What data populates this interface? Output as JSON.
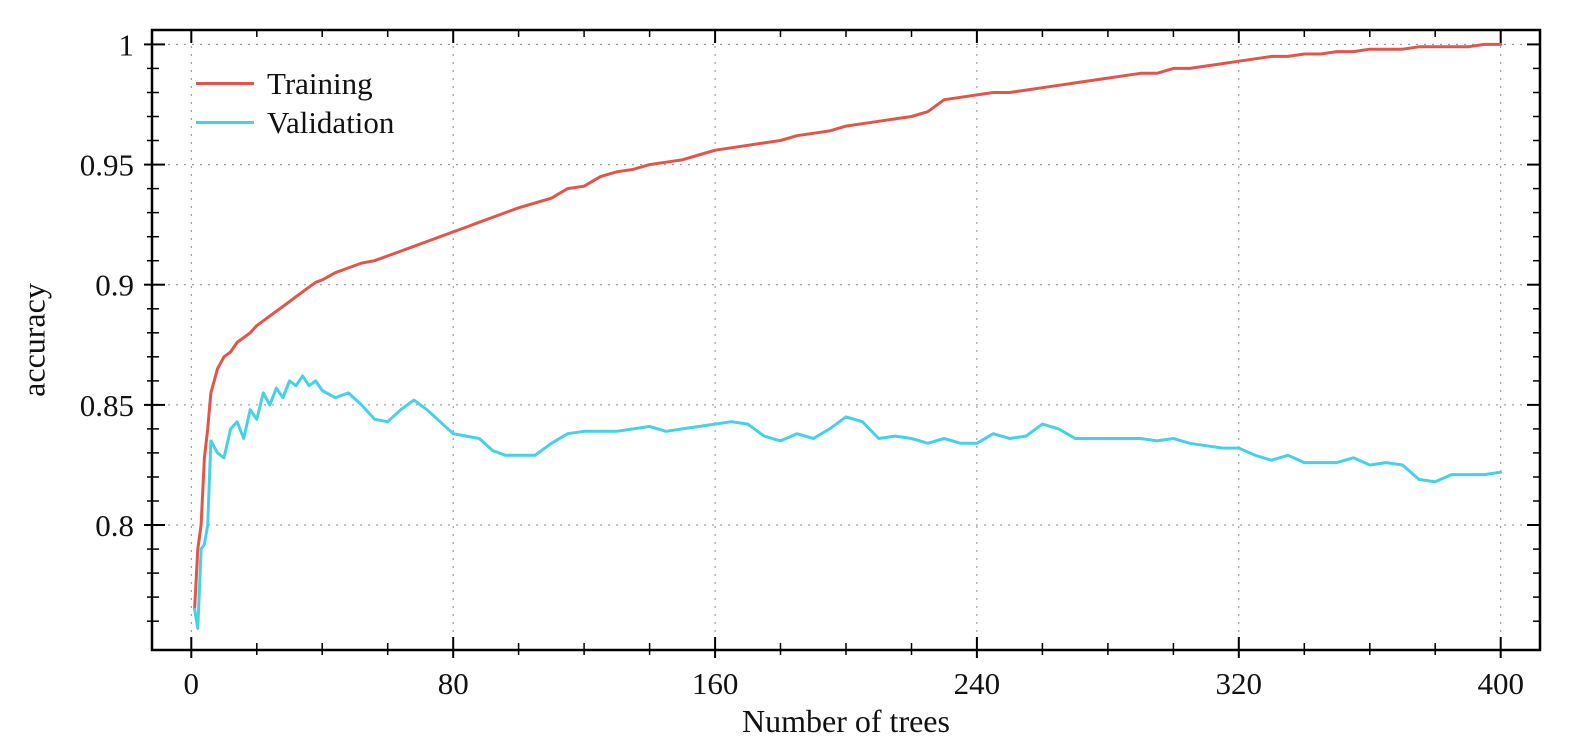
{
  "chart_data": {
    "type": "line",
    "title": "",
    "xlabel": "Number of trees",
    "ylabel": "accuracy",
    "xlim": [
      -12,
      412
    ],
    "ylim": [
      0.748,
      1.006
    ],
    "x_ticks": [
      0,
      80,
      160,
      240,
      320,
      400
    ],
    "y_ticks": [
      0.8,
      0.85,
      0.9,
      0.95,
      1
    ],
    "x_minor_step": 20,
    "y_minor_step": 0.01,
    "grid": true,
    "grid_style": "dotted",
    "legend_position": "top-left",
    "frame_color": "#000000",
    "grid_color": "#8a8a8a",
    "x": [
      1,
      2,
      3,
      4,
      5,
      6,
      8,
      10,
      12,
      14,
      16,
      18,
      20,
      22,
      24,
      26,
      28,
      30,
      32,
      34,
      36,
      38,
      40,
      44,
      48,
      52,
      56,
      60,
      64,
      68,
      72,
      76,
      80,
      84,
      88,
      92,
      96,
      100,
      105,
      110,
      115,
      120,
      125,
      130,
      135,
      140,
      145,
      150,
      155,
      160,
      165,
      170,
      175,
      180,
      185,
      190,
      195,
      200,
      205,
      210,
      215,
      220,
      225,
      230,
      235,
      240,
      245,
      250,
      255,
      260,
      265,
      270,
      275,
      280,
      285,
      290,
      295,
      300,
      305,
      310,
      315,
      320,
      325,
      330,
      335,
      340,
      345,
      350,
      355,
      360,
      365,
      370,
      375,
      380,
      385,
      390,
      395,
      400
    ],
    "series": [
      {
        "name": "Training",
        "color": "#e25549",
        "values": [
          0.765,
          0.79,
          0.8,
          0.828,
          0.84,
          0.855,
          0.865,
          0.87,
          0.872,
          0.876,
          0.878,
          0.88,
          0.883,
          0.885,
          0.887,
          0.889,
          0.891,
          0.893,
          0.895,
          0.897,
          0.899,
          0.901,
          0.902,
          0.905,
          0.907,
          0.909,
          0.91,
          0.912,
          0.914,
          0.916,
          0.918,
          0.92,
          0.922,
          0.924,
          0.926,
          0.928,
          0.93,
          0.932,
          0.934,
          0.936,
          0.94,
          0.941,
          0.945,
          0.947,
          0.948,
          0.95,
          0.951,
          0.952,
          0.954,
          0.956,
          0.957,
          0.958,
          0.959,
          0.96,
          0.962,
          0.963,
          0.964,
          0.966,
          0.967,
          0.968,
          0.969,
          0.97,
          0.972,
          0.977,
          0.978,
          0.979,
          0.98,
          0.98,
          0.981,
          0.982,
          0.983,
          0.984,
          0.985,
          0.986,
          0.987,
          0.988,
          0.988,
          0.99,
          0.99,
          0.991,
          0.992,
          0.993,
          0.994,
          0.995,
          0.995,
          0.996,
          0.996,
          0.997,
          0.997,
          0.998,
          0.998,
          0.998,
          0.999,
          0.999,
          0.999,
          0.999,
          1.0,
          1.0
        ]
      },
      {
        "name": "Validation",
        "color": "#45d1e8",
        "values": [
          0.765,
          0.757,
          0.79,
          0.792,
          0.8,
          0.835,
          0.83,
          0.828,
          0.84,
          0.843,
          0.836,
          0.848,
          0.844,
          0.855,
          0.85,
          0.857,
          0.853,
          0.86,
          0.858,
          0.862,
          0.858,
          0.86,
          0.856,
          0.853,
          0.855,
          0.85,
          0.844,
          0.843,
          0.848,
          0.852,
          0.848,
          0.843,
          0.838,
          0.837,
          0.836,
          0.831,
          0.829,
          0.829,
          0.829,
          0.834,
          0.838,
          0.839,
          0.839,
          0.839,
          0.84,
          0.841,
          0.839,
          0.84,
          0.841,
          0.842,
          0.843,
          0.842,
          0.837,
          0.835,
          0.838,
          0.836,
          0.84,
          0.845,
          0.843,
          0.836,
          0.837,
          0.836,
          0.834,
          0.836,
          0.834,
          0.834,
          0.838,
          0.836,
          0.837,
          0.842,
          0.84,
          0.836,
          0.836,
          0.836,
          0.836,
          0.836,
          0.835,
          0.836,
          0.834,
          0.833,
          0.832,
          0.832,
          0.829,
          0.827,
          0.829,
          0.826,
          0.826,
          0.826,
          0.828,
          0.825,
          0.826,
          0.825,
          0.819,
          0.818,
          0.821,
          0.821,
          0.821,
          0.822
        ]
      }
    ]
  }
}
